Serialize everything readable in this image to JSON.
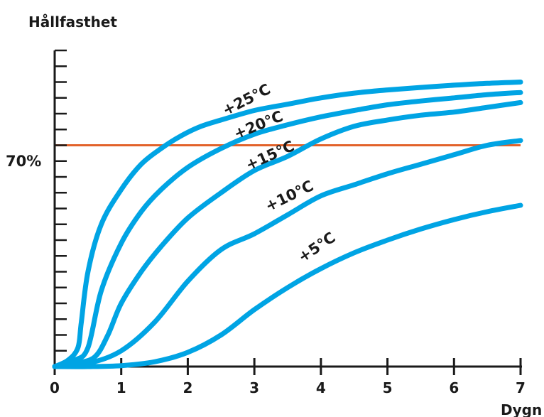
{
  "chart_data": {
    "type": "line",
    "title": "",
    "ylabel": "Hållfasthet",
    "xlabel": "Dygn",
    "xlim": [
      0,
      7
    ],
    "ylim": [
      0,
      100
    ],
    "x_ticks": [
      0,
      1,
      2,
      3,
      4,
      5,
      6,
      7
    ],
    "x_tick_labels": [
      "0",
      "1",
      "2",
      "3",
      "4",
      "5",
      "6",
      "7"
    ],
    "y_minor_ticks": [
      5,
      10,
      15,
      20,
      25,
      30,
      35,
      40,
      45,
      50,
      55,
      60,
      65,
      70,
      75,
      80,
      85,
      90,
      95,
      100
    ],
    "grid": false,
    "reference_line": {
      "label": "70%",
      "y": 70,
      "color": "#e2622a"
    },
    "series_color": "#00a4e4",
    "series": [
      {
        "name": "+25℃",
        "x": [
          0,
          0.2,
          0.35,
          0.4,
          0.5,
          0.7,
          1.0,
          1.3,
          1.6,
          1.9,
          2.2,
          2.5,
          3,
          3.5,
          4,
          4.5,
          5,
          5.5,
          6,
          6.5,
          7
        ],
        "y": [
          0,
          2,
          6,
          14,
          30,
          45,
          56,
          64,
          69,
          73,
          76,
          78,
          81,
          83,
          85,
          86.5,
          87.5,
          88.3,
          89,
          89.6,
          90
        ]
      },
      {
        "name": "+20℃",
        "x": [
          0,
          0.3,
          0.5,
          0.7,
          1.0,
          1.3,
          1.6,
          2.0,
          2.5,
          3,
          3.5,
          4,
          4.5,
          5,
          5.5,
          6,
          6.5,
          7
        ],
        "y": [
          0,
          2,
          6,
          24,
          39,
          49,
          56,
          63,
          69,
          73.5,
          76.5,
          79,
          81,
          82.8,
          84,
          85,
          86,
          86.7
        ]
      },
      {
        "name": "+15℃",
        "x": [
          0,
          0.3,
          0.6,
          0.8,
          1.0,
          1.3,
          1.6,
          2.0,
          2.5,
          3,
          3.5,
          4,
          4.5,
          5,
          5.5,
          6,
          6.5,
          7
        ],
        "y": [
          0,
          1,
          3,
          10,
          20,
          30,
          38,
          47,
          55,
          62,
          66.5,
          72,
          76,
          78,
          79.5,
          80.5,
          82,
          83.5
        ]
      },
      {
        "name": "+10℃",
        "x": [
          0,
          0.5,
          1.0,
          1.5,
          2.0,
          2.5,
          3.0,
          3.5,
          4.0,
          4.5,
          5.0,
          5.5,
          6.0,
          6.5,
          7.0
        ],
        "y": [
          0,
          1,
          5,
          14,
          27,
          37,
          42,
          48,
          54,
          57.5,
          61,
          64,
          67,
          70,
          71.5
        ]
      },
      {
        "name": "+5℃",
        "x": [
          0,
          0.5,
          1.0,
          1.5,
          2.0,
          2.5,
          3.0,
          3.5,
          4.0,
          4.5,
          5.0,
          5.5,
          6.0,
          6.5,
          7.0
        ],
        "y": [
          0,
          0,
          0.3,
          1.5,
          4.5,
          10,
          18,
          25,
          31,
          36,
          40,
          43.5,
          46.5,
          49,
          51
        ]
      }
    ]
  }
}
